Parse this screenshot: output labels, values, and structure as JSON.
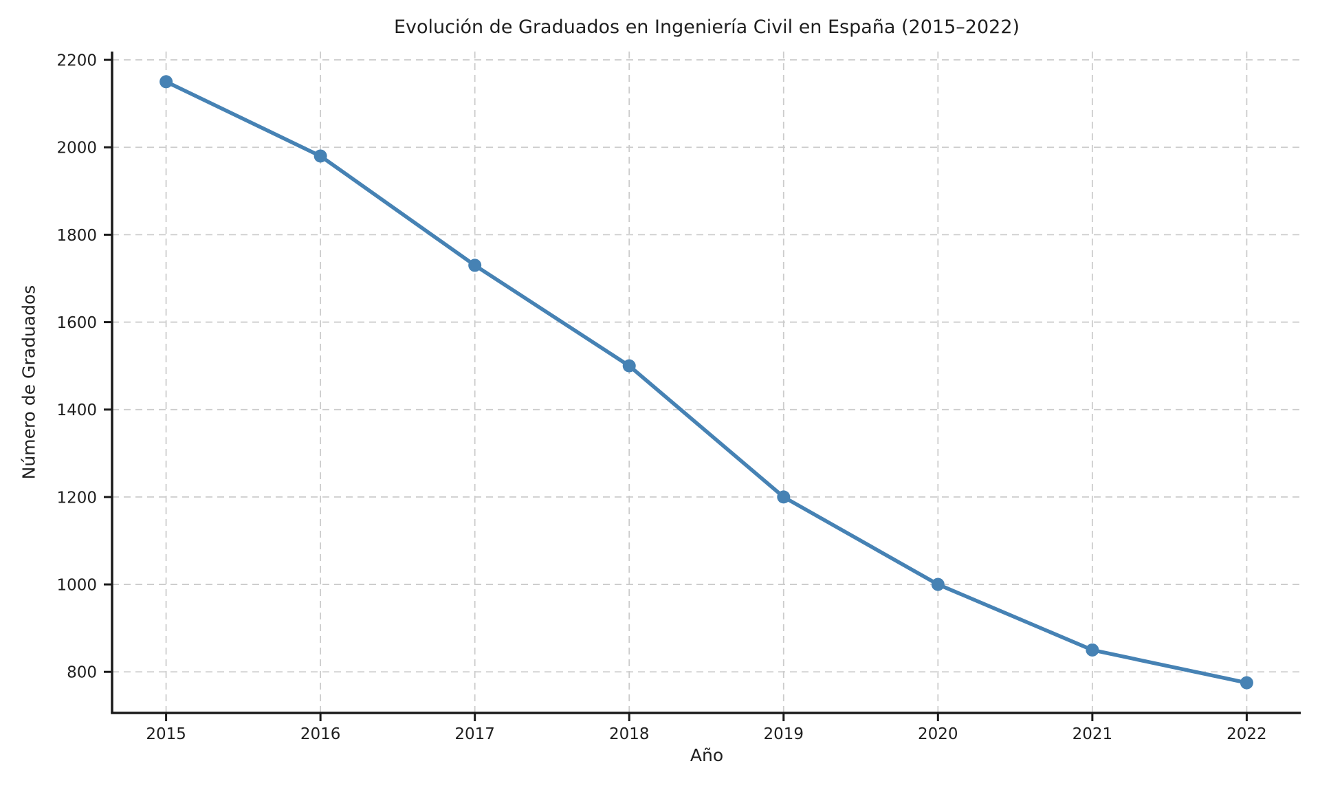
{
  "chart_data": {
    "type": "line",
    "title": "Evolución de Graduados en Ingeniería Civil en España (2015–2022)",
    "xlabel": "Año",
    "ylabel": "Número de Graduados",
    "x": [
      2015,
      2016,
      2017,
      2018,
      2019,
      2020,
      2021,
      2022
    ],
    "y": [
      2150,
      1980,
      1730,
      1500,
      1200,
      1000,
      850,
      775
    ],
    "xticks": [
      2015,
      2016,
      2017,
      2018,
      2019,
      2020,
      2021,
      2022
    ],
    "yticks": [
      800,
      1000,
      1200,
      1400,
      1600,
      1800,
      2000,
      2200
    ],
    "xlim": [
      2014.65,
      2022.35
    ],
    "ylim": [
      706,
      2219
    ],
    "grid": true,
    "legend": "none",
    "line_color": "#4682B4",
    "marker": "circle",
    "grid_color": "#cccccc",
    "spine_color": "#1a1a1a",
    "text_color": "#1f1f1f"
  }
}
